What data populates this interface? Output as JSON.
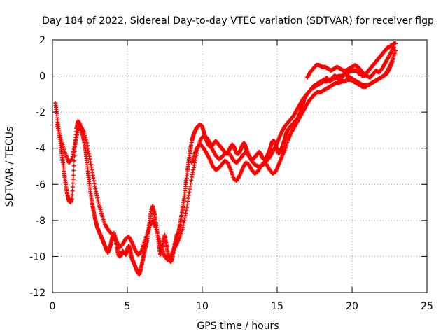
{
  "chart_data": {
    "type": "scatter",
    "title": "Day 184 of 2022, Sidereal Day-to-day VTEC variation (SDTVAR) for receiver flgp",
    "xlabel": "GPS time / hours",
    "ylabel": "SDTVAR / TECUs",
    "xlim": [
      0,
      25
    ],
    "ylim": [
      -12,
      2
    ],
    "xticks": [
      "0",
      "5",
      "10",
      "15",
      "20",
      "25"
    ],
    "yticks": [
      "-12",
      "-10",
      "-8",
      "-6",
      "-4",
      "-2",
      "0",
      "2"
    ],
    "grid": true,
    "marker": "+",
    "color": "#ff0000",
    "series": [
      {
        "x": [
          0.2,
          0.3,
          0.4,
          0.5,
          0.6,
          0.7,
          0.8,
          0.9,
          1.0,
          1.1,
          1.2,
          1.3,
          1.4,
          1.5,
          1.6,
          1.7,
          1.8,
          1.9,
          2.0,
          2.1,
          2.2,
          2.3,
          2.4,
          2.5,
          2.6,
          2.7,
          2.8,
          2.9,
          3.0,
          3.1,
          3.2,
          3.3,
          3.4,
          3.5,
          3.6,
          3.7,
          3.8,
          3.9,
          4.0,
          4.1,
          4.2,
          4.3,
          4.4,
          4.5,
          4.6,
          4.7,
          4.8,
          4.9,
          5.0,
          5.1,
          5.2,
          5.3,
          5.4,
          5.5,
          5.6,
          5.7,
          5.8,
          5.9,
          6.0,
          6.1,
          6.2,
          6.3,
          6.4,
          6.5,
          6.6,
          6.7,
          6.8,
          6.9,
          7.0,
          7.1,
          7.2,
          7.3,
          7.4,
          7.5,
          7.6,
          7.7,
          7.8,
          7.9,
          8.0,
          8.1,
          8.2,
          8.3,
          8.4,
          8.5,
          8.6,
          8.7,
          8.8,
          8.9,
          9.0,
          9.1,
          9.2,
          9.3,
          9.4,
          9.5,
          9.6,
          9.7,
          9.8,
          9.9,
          10.0,
          10.1,
          10.2,
          10.3,
          10.4,
          10.5,
          10.6,
          10.7,
          10.8,
          10.9,
          11.0,
          11.1,
          11.2,
          11.3,
          11.4,
          11.5,
          11.6,
          11.7,
          11.8,
          11.9,
          12.0,
          12.1,
          12.2,
          12.3,
          12.4,
          12.5,
          12.6,
          12.7,
          12.8,
          12.9,
          13.0,
          13.1,
          13.2,
          13.3,
          13.4,
          13.5,
          13.6,
          13.7,
          13.8,
          13.9,
          14.0,
          14.1,
          14.2,
          14.3,
          14.4,
          14.5,
          14.6,
          14.7,
          14.8,
          14.9,
          15.0,
          15.1,
          15.2,
          15.3,
          15.4,
          15.5,
          15.6,
          15.7,
          15.8,
          15.9,
          16.0,
          16.1,
          16.2,
          16.3,
          16.4,
          16.5,
          16.6,
          16.7,
          16.8,
          16.9,
          17.0,
          17.1,
          17.2,
          17.3,
          17.4,
          17.5,
          17.6,
          17.7,
          17.8,
          17.9,
          18.0,
          18.1,
          18.2,
          18.3,
          18.4,
          18.5,
          18.6,
          18.7,
          18.8,
          18.9,
          19.0,
          19.1,
          19.2,
          19.3,
          19.4,
          19.5,
          19.6,
          19.7,
          19.8,
          19.9,
          20.0,
          20.1,
          20.2,
          20.3,
          20.4,
          20.5,
          20.6,
          20.7,
          20.8,
          20.9,
          21.0,
          21.1,
          21.2,
          21.3,
          21.4,
          21.5,
          21.6,
          21.7,
          21.8,
          21.9,
          22.0,
          22.1,
          22.2,
          22.3,
          22.4,
          22.5,
          22.6,
          22.7,
          22.8,
          22.9
        ],
        "y": [
          -1.5,
          -2.2,
          -2.9,
          -3.5,
          -4.2,
          -4.8,
          -5.5,
          -6.1,
          -6.6,
          -6.9,
          -7.0,
          -6.8,
          -5.5,
          -3.9,
          -2.9,
          -2.5,
          -2.6,
          -2.9,
          -3.2,
          -3.6,
          -4.1,
          -4.8,
          -5.5,
          -6.2,
          -6.8,
          -7.3,
          -7.7,
          -8.1,
          -8.4,
          -8.6,
          -8.8,
          -9.0,
          -9.2,
          -9.4,
          -9.6,
          -9.8,
          -9.6,
          -9.3,
          -8.9,
          -8.7,
          -9.0,
          -9.5,
          -9.9,
          -10.0,
          -9.9,
          -9.7,
          -9.8,
          -9.9,
          -9.6,
          -9.4,
          -9.7,
          -10.1,
          -10.3,
          -10.5,
          -10.7,
          -10.9,
          -11.0,
          -10.7,
          -10.3,
          -9.9,
          -9.5,
          -9.2,
          -8.6,
          -8.0,
          -7.4,
          -7.2,
          -7.6,
          -8.1,
          -8.7,
          -9.4,
          -9.9,
          -9.7,
          -9.2,
          -8.8,
          -9.3,
          -9.8,
          -10.2,
          -10.3,
          -10.1,
          -9.6,
          -9.2,
          -8.8,
          -8.7,
          -8.3,
          -7.8,
          -7.3,
          -6.7,
          -6.0,
          -5.3,
          -4.7,
          -4.1,
          -3.6,
          -3.3,
          -3.1,
          -2.9,
          -2.8,
          -2.7,
          -2.7,
          -2.8,
          -3.1,
          -3.4,
          -3.6,
          -3.8,
          -3.9,
          -3.9,
          -3.8,
          -3.7,
          -3.6,
          -3.7,
          -3.8,
          -3.9,
          -4.0,
          -4.1,
          -4.2,
          -4.3,
          -4.3,
          -4.1,
          -3.9,
          -3.8,
          -3.9,
          -4.1,
          -4.3,
          -4.3,
          -4.2,
          -4.0,
          -3.8,
          -3.7,
          -3.9,
          -4.2,
          -4.4,
          -4.5,
          -4.6,
          -4.6,
          -4.5,
          -4.4,
          -4.3,
          -4.2,
          -4.3,
          -4.5,
          -4.6,
          -4.6,
          -4.5,
          -4.3,
          -4.1,
          -3.8,
          -3.6,
          -3.6,
          -3.8,
          -4.1,
          -4.3,
          -4.2,
          -4.0,
          -3.8,
          -3.5,
          -3.2,
          -3.0,
          -2.9,
          -2.8,
          -2.7,
          -2.6,
          -2.5,
          -2.4,
          -2.3,
          -2.1,
          -1.9,
          -1.6,
          -1.3,
          -1.1,
          -1.0,
          -0.9,
          -0.8,
          -0.7,
          -0.6,
          -0.5,
          -0.5,
          -0.4,
          -0.4,
          -0.3,
          -0.3,
          -0.2,
          -0.2,
          -0.1,
          -0.2,
          -0.3,
          -0.2,
          -0.1,
          0.0,
          0.0,
          -0.1,
          -0.2,
          -0.2,
          -0.1,
          0.0,
          0.1,
          0.1,
          0.2,
          0.2,
          0.3,
          0.3,
          0.3,
          0.3,
          0.3,
          0.2,
          0.1,
          0.1,
          0.0,
          0.0,
          0.1,
          0.2,
          0.3,
          0.4,
          0.5,
          0.6,
          0.7,
          0.8,
          0.9,
          1.0,
          1.1,
          1.2,
          1.3,
          1.4,
          1.5,
          1.6,
          1.6,
          1.7,
          1.7,
          1.8,
          1.8
        ]
      },
      {
        "x": [
          0.3,
          0.5,
          0.7,
          0.9,
          1.1,
          1.3,
          1.5,
          1.7,
          1.9,
          2.1,
          2.3,
          2.5,
          2.7,
          2.9,
          3.1,
          3.3,
          3.5,
          3.7,
          3.9,
          4.1,
          4.3,
          4.5,
          4.7,
          4.9,
          5.1,
          5.3,
          5.5,
          5.7,
          5.9,
          6.1,
          6.3,
          6.5,
          6.7,
          6.9,
          7.1,
          7.3,
          7.5,
          7.7,
          7.9,
          8.1,
          8.3,
          8.5,
          8.7,
          8.9,
          9.1,
          9.3,
          9.5,
          9.7,
          9.9,
          10.1,
          10.3,
          10.5,
          10.7,
          10.9,
          11.1,
          11.3,
          11.5,
          11.7,
          11.9,
          12.1,
          12.3,
          12.5,
          12.7,
          12.9,
          13.1,
          13.3,
          13.5,
          13.7,
          13.9,
          14.1,
          14.3,
          14.5,
          14.7,
          14.9,
          15.1,
          15.3,
          15.5,
          15.7,
          15.9,
          16.1,
          16.3,
          16.5,
          16.7,
          16.9,
          17.1,
          17.3,
          17.5,
          17.7,
          17.9,
          18.1,
          18.3,
          18.5,
          18.7,
          18.9,
          19.1,
          19.3,
          19.5,
          19.7,
          19.9,
          20.1,
          20.3,
          20.5,
          20.7,
          20.9,
          21.1,
          21.3,
          21.5,
          21.7,
          21.9,
          22.1,
          22.3,
          22.5,
          22.7,
          22.9
        ],
        "y": [
          -2.7,
          -3.3,
          -3.9,
          -4.4,
          -4.8,
          -4.6,
          -3.8,
          -3.0,
          -2.8,
          -3.1,
          -3.7,
          -4.6,
          -5.5,
          -6.4,
          -7.1,
          -7.7,
          -8.2,
          -8.5,
          -8.7,
          -8.9,
          -9.2,
          -9.5,
          -9.3,
          -9.0,
          -8.9,
          -9.2,
          -9.6,
          -9.9,
          -9.8,
          -9.3,
          -8.8,
          -8.3,
          -8.0,
          -8.4,
          -9.0,
          -9.6,
          -10.0,
          -10.2,
          -10.0,
          -9.6,
          -9.3,
          -8.9,
          -8.4,
          -7.6,
          -6.6,
          -5.6,
          -4.8,
          -4.0,
          -3.5,
          -3.3,
          -3.4,
          -3.7,
          -4.1,
          -4.4,
          -4.6,
          -4.5,
          -4.3,
          -4.2,
          -4.4,
          -4.7,
          -4.8,
          -4.6,
          -4.4,
          -4.2,
          -4.4,
          -4.7,
          -4.9,
          -5.0,
          -5.0,
          -4.9,
          -4.7,
          -4.5,
          -4.2,
          -3.9,
          -3.5,
          -3.1,
          -2.8,
          -2.6,
          -2.4,
          -2.2,
          -1.9,
          -1.6,
          -1.3,
          -1.1,
          -0.9,
          -0.7,
          -0.6,
          -0.5,
          -0.4,
          -0.3,
          -0.3,
          -0.2,
          -0.2,
          -0.1,
          0.0,
          0.0,
          0.1,
          0.0,
          -0.1,
          -0.2,
          -0.3,
          -0.4,
          -0.5,
          -0.5,
          -0.5,
          -0.4,
          -0.3,
          -0.2,
          -0.1,
          0.0,
          0.2,
          0.5,
          0.9,
          1.4
        ]
      },
      {
        "x": [
          9.3,
          9.5,
          9.7,
          9.9,
          10.1,
          10.3,
          10.5,
          10.7,
          10.9,
          11.1,
          11.3,
          11.5,
          11.7,
          11.9,
          12.1,
          12.3,
          12.5,
          12.7,
          12.9,
          13.1,
          13.3,
          13.5,
          13.7,
          13.9,
          14.1,
          14.3,
          14.5,
          14.7,
          14.9,
          15.1,
          15.3,
          15.5,
          15.7,
          15.9,
          16.1,
          16.3,
          16.5,
          16.7,
          16.9,
          17.1,
          17.3,
          17.5,
          17.7,
          17.9,
          18.1,
          18.3,
          18.5,
          18.7,
          18.9,
          19.1,
          19.3,
          19.5,
          19.7,
          19.9,
          20.1,
          20.3,
          20.5,
          20.7,
          20.9,
          21.1,
          21.3,
          21.5,
          21.7,
          21.9,
          22.1,
          22.3,
          22.5,
          22.7
        ],
        "y": [
          -4.8,
          -4.3,
          -3.9,
          -3.8,
          -4.0,
          -4.3,
          -4.6,
          -5.0,
          -5.2,
          -5.1,
          -4.9,
          -4.7,
          -4.8,
          -5.2,
          -5.7,
          -5.8,
          -5.5,
          -5.1,
          -4.8,
          -4.9,
          -5.2,
          -5.4,
          -5.3,
          -5.0,
          -4.8,
          -4.9,
          -5.2,
          -5.4,
          -5.3,
          -4.9,
          -4.5,
          -4.1,
          -3.6,
          -3.2,
          -2.9,
          -2.6,
          -2.3,
          -2.0,
          -1.7,
          -1.4,
          -1.2,
          -1.0,
          -0.9,
          -0.9,
          -0.8,
          -0.7,
          -0.6,
          -0.5,
          -0.4,
          -0.4,
          -0.3,
          -0.3,
          -0.2,
          -0.2,
          -0.3,
          -0.4,
          -0.5,
          -0.6,
          -0.6,
          -0.5,
          -0.4,
          -0.3,
          -0.2,
          -0.1,
          0.0,
          0.1,
          0.4,
          0.8
        ]
      },
      {
        "x": [
          17.0,
          17.2,
          17.4,
          17.6,
          17.8,
          18.0,
          18.2,
          18.4,
          18.6,
          18.8,
          19.0,
          19.2,
          19.4,
          19.6,
          19.8,
          20.0,
          20.2,
          20.4,
          20.6,
          20.8,
          21.0,
          21.2,
          21.4,
          21.6,
          21.8,
          22.0,
          22.2,
          22.4,
          22.6,
          22.8
        ],
        "y": [
          -0.1,
          0.2,
          0.4,
          0.6,
          0.6,
          0.5,
          0.5,
          0.4,
          0.3,
          0.4,
          0.5,
          0.4,
          0.3,
          0.3,
          0.4,
          0.5,
          0.6,
          0.5,
          0.3,
          0.1,
          0.0,
          -0.1,
          0.1,
          0.3,
          0.2,
          0.4,
          0.7,
          1.0,
          1.3,
          1.6
        ]
      }
    ]
  }
}
